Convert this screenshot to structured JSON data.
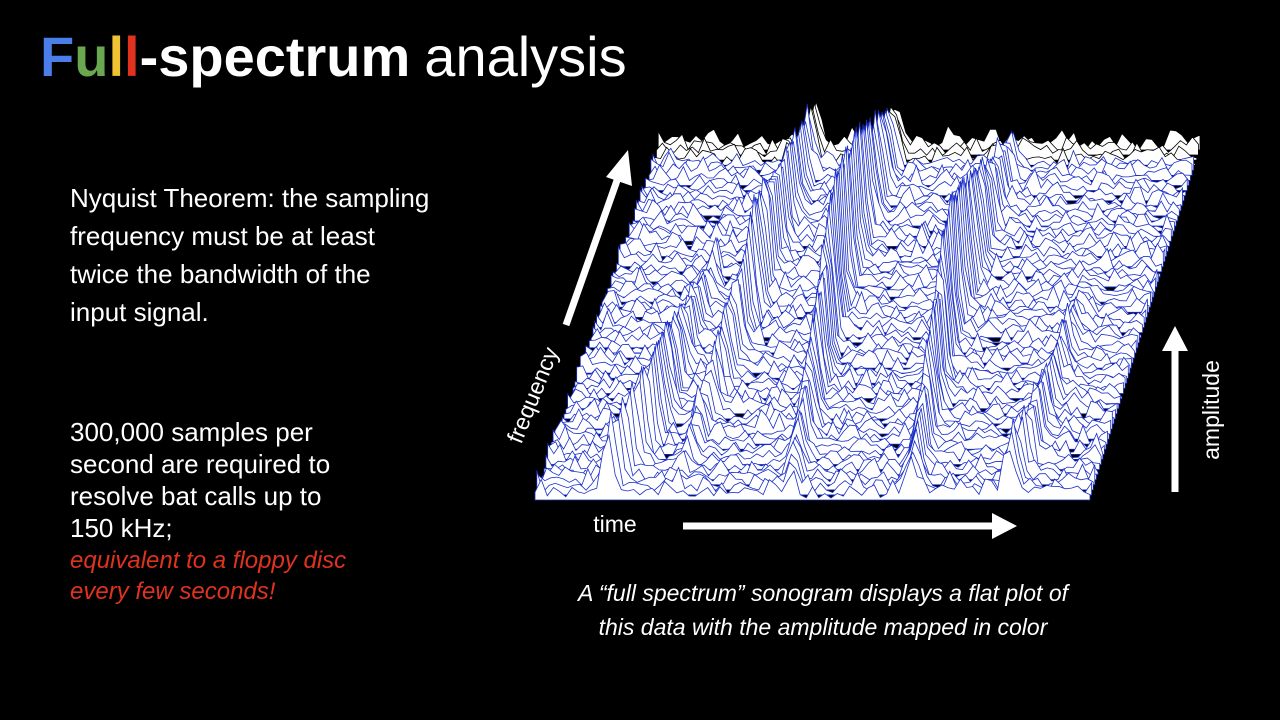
{
  "title": {
    "segments": [
      {
        "text": "F",
        "color": "#4a7ee8"
      },
      {
        "text": "u",
        "color": "#6aa84f"
      },
      {
        "text": "l",
        "color": "#f1c232"
      },
      {
        "text": "l",
        "color": "#e0321e"
      },
      {
        "text": "-spectrum",
        "color": "#ffffff"
      }
    ],
    "rest": "analysis"
  },
  "nyquist": [
    "Nyquist Theorem: the sampling",
    "frequency must be at least",
    "twice the bandwidth of the",
    "input signal."
  ],
  "samples": [
    "300,000 samples per",
    "second are required to",
    "resolve bat calls up to",
    "150 kHz;"
  ],
  "note": [
    "equivalent to a floppy disc",
    "every few seconds!"
  ],
  "axes": {
    "frequency": "frequency",
    "time": "time",
    "amplitude": "amplitude"
  },
  "caption": [
    "A “full spectrum” sonogram displays a flat plot of",
    "this data with the amplitude mapped in color"
  ]
}
